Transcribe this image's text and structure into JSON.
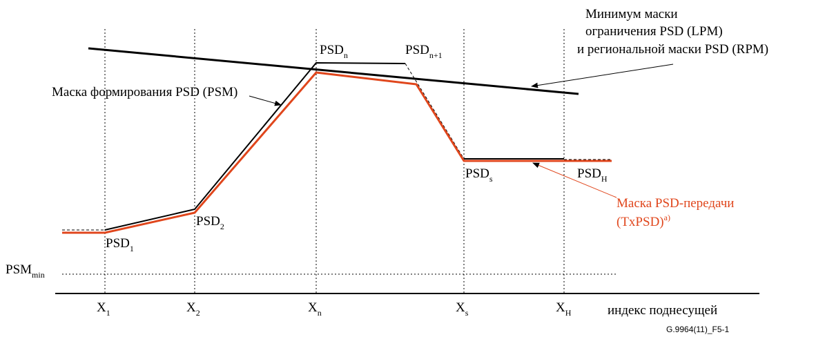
{
  "x_axis": {
    "label": "индекс поднесущей",
    "ticks": [
      {
        "main": "X",
        "sub": "1"
      },
      {
        "main": "X",
        "sub": "2"
      },
      {
        "main": "X",
        "sub": "n"
      },
      {
        "main": "X",
        "sub": "s"
      },
      {
        "main": "X",
        "sub": "H"
      }
    ]
  },
  "psm_min": {
    "main": "PSM",
    "sub": "min"
  },
  "points": {
    "psd1": {
      "main": "PSD",
      "sub": "1"
    },
    "psd2": {
      "main": "PSD",
      "sub": "2"
    },
    "psdn": {
      "main": "PSD",
      "sub": "n"
    },
    "psdn1": {
      "main": "PSD",
      "sub": "n+1"
    },
    "psds": {
      "main": "PSD",
      "sub": "s"
    },
    "psdh": {
      "main": "PSD",
      "sub": "H"
    }
  },
  "annotations": {
    "min_mask_line1": "Минимум маски",
    "min_mask_line2": "ограничения  PSD (LPM)",
    "min_mask_line3": "и региональной маски PSD (RPM)",
    "shaping_mask": "Маска формирования PSD (PSM)",
    "tx_mask_line1": "Маска PSD-передачи",
    "tx_mask_line2": "(TxPSD)",
    "tx_mask_sup": "a)"
  },
  "figure_code": "G.9964(11)_F5-1",
  "colors": {
    "tx_mask": "#e0461c",
    "lines": "#000000"
  }
}
